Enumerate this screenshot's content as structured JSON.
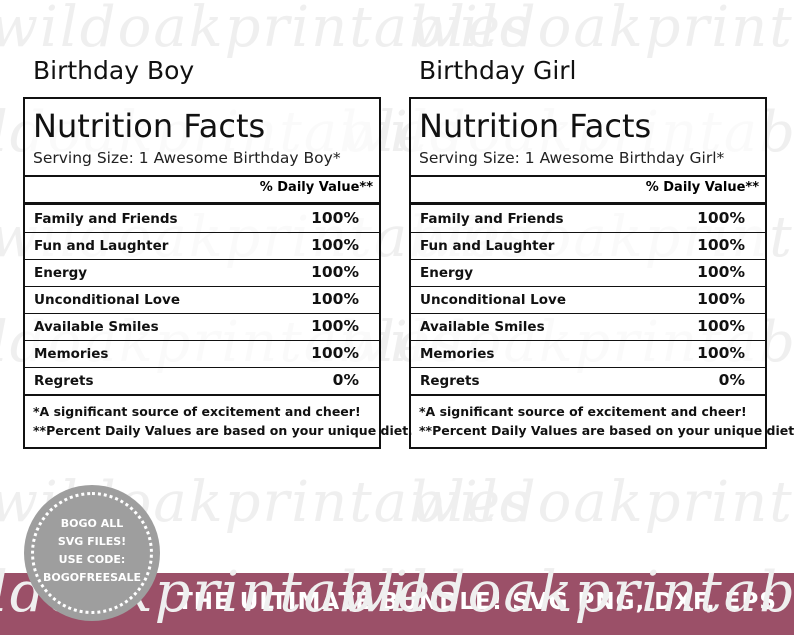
{
  "watermark": "wildoakprintables",
  "labels": [
    {
      "title": "Birthday Boy",
      "heading": "Nutrition Facts",
      "serving": "Serving Size: 1 Awesome Birthday Boy*",
      "dv_header": "% Daily Value**",
      "rows": [
        [
          "Family and Friends",
          "100%"
        ],
        [
          "Fun and Laughter",
          "100%"
        ],
        [
          "Energy",
          "100%"
        ],
        [
          "Unconditional Love",
          "100%"
        ],
        [
          "Available Smiles",
          "100%"
        ],
        [
          "Memories",
          "100%"
        ],
        [
          "Regrets",
          "0%"
        ]
      ],
      "footnotes": [
        "*A significant source of excitement and cheer!",
        "**Percent Daily Values are based on your unique diet."
      ]
    },
    {
      "title": "Birthday Girl",
      "heading": "Nutrition Facts",
      "serving": "Serving Size: 1 Awesome Birthday Girl*",
      "dv_header": "% Daily Value**",
      "rows": [
        [
          "Family and Friends",
          "100%"
        ],
        [
          "Fun and Laughter",
          "100%"
        ],
        [
          "Energy",
          "100%"
        ],
        [
          "Unconditional Love",
          "100%"
        ],
        [
          "Available Smiles",
          "100%"
        ],
        [
          "Memories",
          "100%"
        ],
        [
          "Regrets",
          "0%"
        ]
      ],
      "footnotes": [
        "*A significant source of excitement and cheer!",
        "**Percent Daily Values are based on your unique diet."
      ]
    }
  ],
  "badge": [
    "BOGO ALL",
    "SVG FILES!",
    "USE CODE:",
    "BOGOFREESALE"
  ],
  "banner": "THE ULTIMATE BUNDLE! SVG PNG, DXF, EPS"
}
